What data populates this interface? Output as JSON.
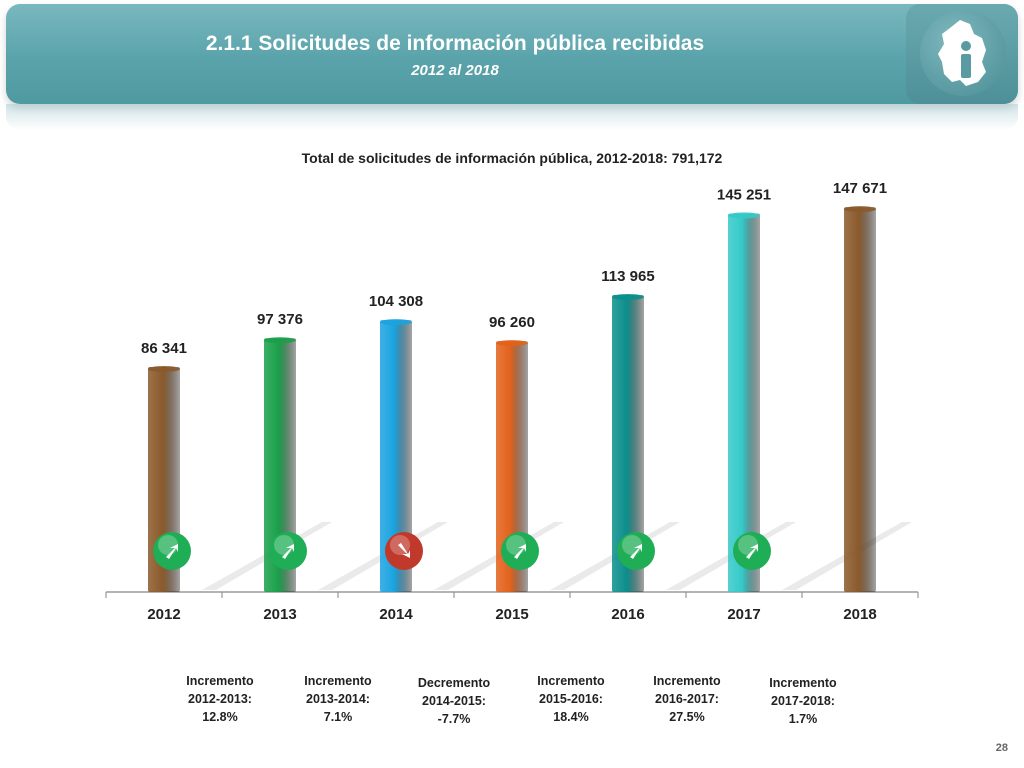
{
  "header": {
    "title": "2.1.1 Solicitudes de información pública recibidas",
    "subtitle": "2012 al 2018",
    "logo_icon": "cdmx-map-info-icon"
  },
  "chart_data": {
    "type": "bar",
    "title": "Total de solicitudes de información pública, 2012-2018: 791,172",
    "categories": [
      "2012",
      "2013",
      "2014",
      "2015",
      "2016",
      "2017",
      "2018"
    ],
    "values": [
      86341,
      97376,
      104308,
      96260,
      113965,
      145251,
      147671
    ],
    "value_labels": [
      "86 341",
      "97 376",
      "104 308",
      "96 260",
      "113 965",
      "145 251",
      "147 671"
    ],
    "colors": [
      "#8b5a2b",
      "#1aa04a",
      "#1aa3e0",
      "#e2621b",
      "#0b8f8c",
      "#35c9c9",
      "#8b5a2b"
    ],
    "ylim": [
      0,
      160000
    ],
    "grid": false,
    "legend": "none",
    "trend_markers": [
      {
        "direction": "up",
        "color": "#1fae55"
      },
      {
        "direction": "up",
        "color": "#1fae55"
      },
      {
        "direction": "down",
        "color": "#c0392b"
      },
      {
        "direction": "up",
        "color": "#1fae55"
      },
      {
        "direction": "up",
        "color": "#1fae55"
      },
      {
        "direction": "up",
        "color": "#1fae55"
      }
    ],
    "annotations": [
      {
        "line1": "Incremento",
        "line2": "2012-2013:",
        "line3": "12.8%"
      },
      {
        "line1": "Incremento",
        "line2": "2013-2014:",
        "line3": "7.1%"
      },
      {
        "line1": "Decremento",
        "line2": "2014-2015:",
        "line3": "-7.7%"
      },
      {
        "line1": "Incremento",
        "line2": "2015-2016:",
        "line3": "18.4%"
      },
      {
        "line1": "Incremento",
        "line2": "2016-2017:",
        "line3": "27.5%"
      },
      {
        "line1": "Incremento",
        "line2": "2017-2018:",
        "line3": "1.7%"
      }
    ]
  },
  "footer": {
    "page_number": "28"
  }
}
